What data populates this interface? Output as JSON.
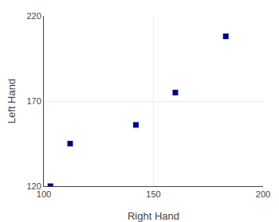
{
  "chart_data": {
    "type": "scatter",
    "xlabel": "Right Hand",
    "ylabel": "Left Hand",
    "x": [
      103,
      112,
      142,
      160,
      183
    ],
    "values": [
      120,
      145,
      156,
      175,
      208
    ],
    "xlim": [
      100,
      200
    ],
    "ylim": [
      120,
      220
    ],
    "xticks": [
      100,
      150,
      200
    ],
    "yticks": [
      120,
      170,
      220
    ],
    "color": "#00008B",
    "marker": "square",
    "grid": true
  }
}
